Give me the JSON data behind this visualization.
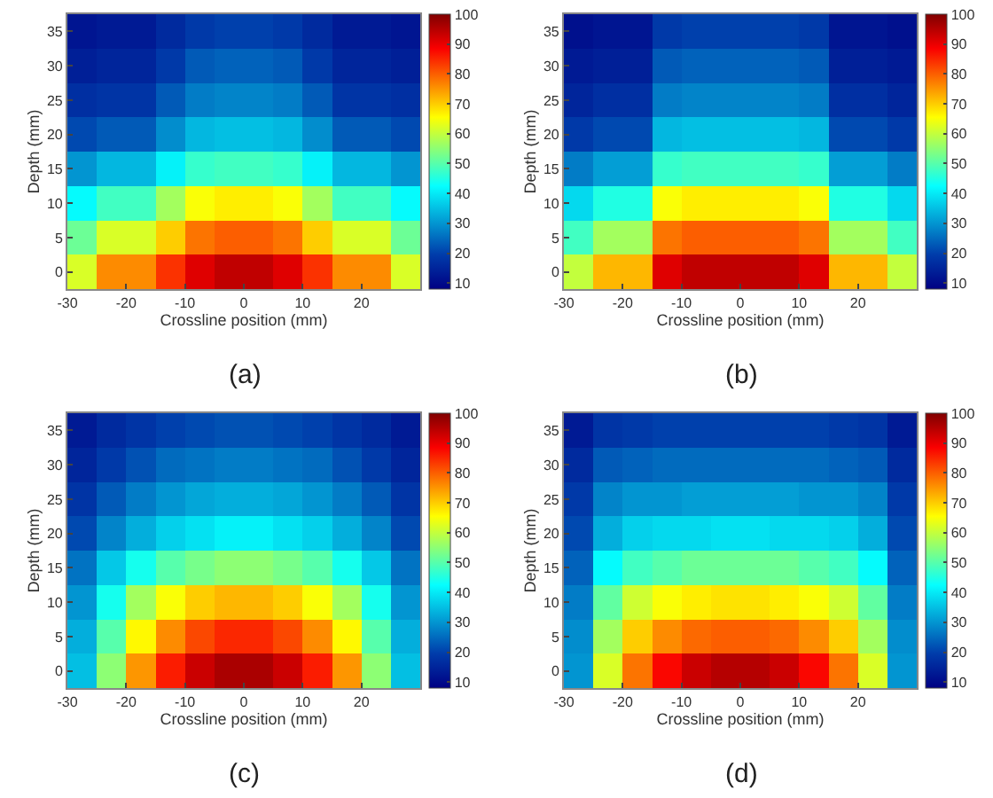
{
  "chart_data": [
    {
      "type": "heatmap",
      "xlabel": "Crossline position (mm)",
      "ylabel": "Depth (mm)",
      "annotations": [
        "(a)"
      ],
      "x": [
        -27.5,
        -22.5,
        -17.5,
        -12.5,
        -7.5,
        -2.5,
        2.5,
        7.5,
        12.5,
        17.5,
        22.5,
        27.5
      ],
      "y_categories": [
        "35",
        "30",
        "25",
        "20",
        "15",
        "10",
        "5",
        "0"
      ],
      "xlim": [
        -30,
        30
      ],
      "xticks": [
        -30,
        -20,
        -10,
        0,
        10,
        20
      ],
      "clim": [
        8,
        100
      ],
      "cticks": [
        10,
        20,
        30,
        40,
        50,
        60,
        70,
        80,
        90,
        100
      ],
      "cells": [
        [
          12,
          13,
          13,
          16,
          19,
          20,
          20,
          19,
          16,
          13,
          13,
          12
        ],
        [
          14,
          15,
          15,
          19,
          23,
          24,
          24,
          23,
          19,
          15,
          15,
          14
        ],
        [
          17,
          18,
          18,
          23,
          27,
          28,
          28,
          27,
          23,
          18,
          18,
          17
        ],
        [
          21,
          23,
          23,
          29,
          34,
          35,
          35,
          34,
          29,
          23,
          23,
          21
        ],
        [
          30,
          34,
          34,
          41,
          47,
          48,
          48,
          47,
          41,
          34,
          34,
          30
        ],
        [
          42,
          48,
          48,
          57,
          65,
          67,
          67,
          65,
          57,
          48,
          48,
          42
        ],
        [
          52,
          62,
          62,
          70,
          78,
          80,
          80,
          78,
          70,
          62,
          62,
          52
        ],
        [
          62,
          76,
          76,
          84,
          91,
          94,
          94,
          91,
          84,
          76,
          76,
          62
        ]
      ]
    },
    {
      "type": "heatmap",
      "xlabel": "Crossline position (mm)",
      "ylabel": "Depth (mm)",
      "annotations": [
        "(b)"
      ],
      "x": [
        -27.5,
        -22.5,
        -17.5,
        -12.5,
        -7.5,
        -2.5,
        2.5,
        7.5,
        12.5,
        17.5,
        22.5,
        27.5
      ],
      "y_categories": [
        "35",
        "30",
        "25",
        "20",
        "15",
        "10",
        "5",
        "0"
      ],
      "xlim": [
        -30,
        30
      ],
      "xticks": [
        -30,
        -20,
        -10,
        0,
        10,
        20
      ],
      "clim": [
        8,
        100
      ],
      "cticks": [
        10,
        20,
        30,
        40,
        50,
        60,
        70,
        80,
        90,
        100
      ],
      "cells": [
        [
          11,
          12,
          12,
          19,
          20,
          20,
          20,
          20,
          19,
          12,
          12,
          11
        ],
        [
          13,
          14,
          14,
          23,
          24,
          24,
          24,
          24,
          23,
          14,
          14,
          13
        ],
        [
          15,
          17,
          17,
          27,
          28,
          28,
          28,
          28,
          27,
          17,
          17,
          15
        ],
        [
          19,
          21,
          21,
          34,
          35,
          35,
          35,
          35,
          34,
          21,
          21,
          19
        ],
        [
          27,
          31,
          31,
          47,
          48,
          48,
          48,
          48,
          47,
          31,
          31,
          27
        ],
        [
          38,
          45,
          45,
          65,
          67,
          67,
          67,
          67,
          65,
          45,
          45,
          38
        ],
        [
          48,
          57,
          57,
          78,
          80,
          80,
          80,
          80,
          78,
          57,
          57,
          48
        ],
        [
          60,
          72,
          72,
          91,
          94,
          94,
          94,
          94,
          91,
          72,
          72,
          60
        ]
      ]
    },
    {
      "type": "heatmap",
      "xlabel": "Crossline position (mm)",
      "ylabel": "Depth (mm)",
      "annotations": [
        "(c)"
      ],
      "x": [
        -27.5,
        -22.5,
        -17.5,
        -12.5,
        -7.5,
        -2.5,
        2.5,
        7.5,
        12.5,
        17.5,
        22.5,
        27.5
      ],
      "y_categories": [
        "35",
        "30",
        "25",
        "20",
        "15",
        "10",
        "5",
        "0"
      ],
      "xlim": [
        -30,
        30
      ],
      "xticks": [
        -30,
        -20,
        -10,
        0,
        10,
        20
      ],
      "clim": [
        8,
        100
      ],
      "cticks": [
        10,
        20,
        30,
        40,
        50,
        60,
        70,
        80,
        90,
        100
      ],
      "cells": [
        [
          13,
          16,
          18,
          20,
          21,
          22,
          22,
          21,
          20,
          18,
          16,
          13
        ],
        [
          15,
          19,
          22,
          25,
          26,
          27,
          27,
          26,
          25,
          22,
          19,
          15
        ],
        [
          18,
          23,
          27,
          30,
          32,
          33,
          33,
          32,
          30,
          27,
          23,
          18
        ],
        [
          21,
          28,
          33,
          37,
          39,
          41,
          41,
          39,
          37,
          33,
          28,
          21
        ],
        [
          26,
          36,
          44,
          50,
          53,
          55,
          55,
          53,
          50,
          44,
          36,
          26
        ],
        [
          30,
          44,
          57,
          65,
          70,
          72,
          72,
          70,
          65,
          57,
          44,
          30
        ],
        [
          33,
          50,
          66,
          76,
          82,
          85,
          85,
          82,
          76,
          66,
          50,
          33
        ],
        [
          35,
          55,
          75,
          86,
          93,
          96,
          96,
          93,
          86,
          75,
          55,
          35
        ]
      ]
    },
    {
      "type": "heatmap",
      "xlabel": "Crossline position (mm)",
      "ylabel": "Depth (mm)",
      "annotations": [
        "(d)"
      ],
      "x": [
        -27.5,
        -22.5,
        -17.5,
        -12.5,
        -7.5,
        -2.5,
        2.5,
        7.5,
        12.5,
        17.5,
        22.5,
        27.5
      ],
      "y_categories": [
        "35",
        "30",
        "25",
        "20",
        "15",
        "10",
        "5",
        "0"
      ],
      "xlim": [
        -30,
        30
      ],
      "xticks": [
        -30,
        -20,
        -10,
        0,
        10,
        20
      ],
      "clim": [
        8,
        100
      ],
      "cticks": [
        10,
        20,
        30,
        40,
        50,
        60,
        70,
        80,
        90,
        100
      ],
      "cells": [
        [
          13,
          18,
          19,
          20,
          20,
          20,
          20,
          20,
          20,
          19,
          18,
          13
        ],
        [
          16,
          23,
          24,
          25,
          25,
          25,
          25,
          25,
          25,
          24,
          23,
          16
        ],
        [
          19,
          28,
          30,
          30,
          31,
          31,
          31,
          31,
          30,
          30,
          28,
          19
        ],
        [
          21,
          33,
          37,
          38,
          38,
          39,
          39,
          38,
          38,
          37,
          33,
          21
        ],
        [
          24,
          42,
          48,
          50,
          52,
          52,
          52,
          52,
          50,
          48,
          42,
          24
        ],
        [
          27,
          51,
          61,
          65,
          67,
          68,
          68,
          67,
          65,
          61,
          51,
          27
        ],
        [
          29,
          57,
          70,
          76,
          79,
          80,
          80,
          79,
          76,
          70,
          57,
          29
        ],
        [
          30,
          62,
          78,
          88,
          93,
          95,
          95,
          93,
          88,
          78,
          62,
          30
        ]
      ]
    }
  ]
}
